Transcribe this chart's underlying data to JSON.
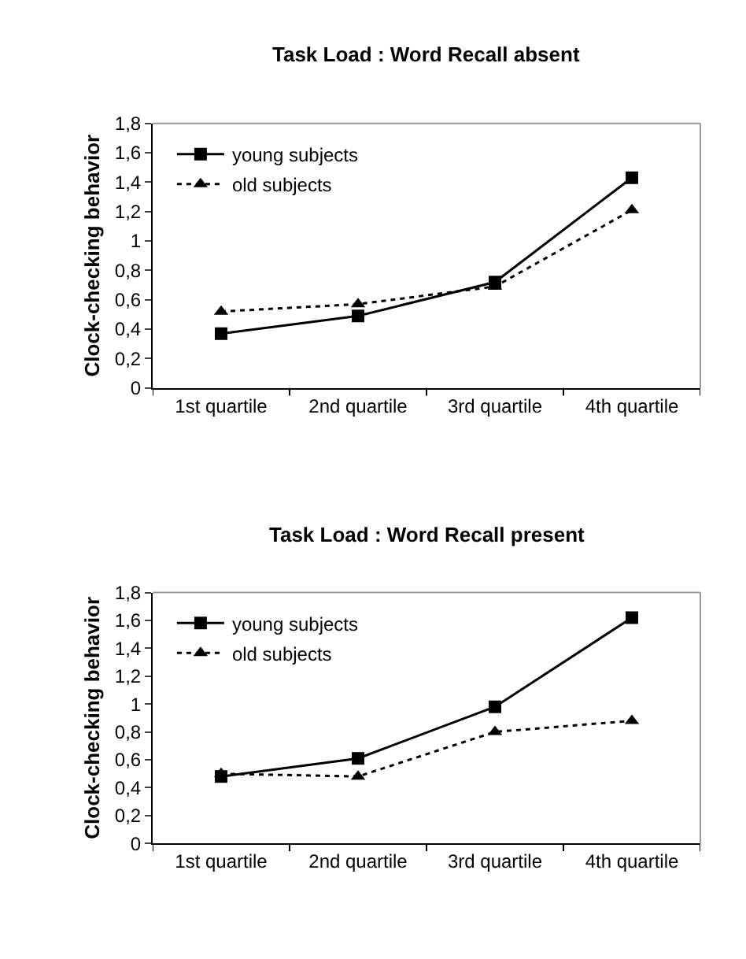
{
  "chart_data": [
    {
      "type": "line",
      "title": "Task Load : Word Recall absent",
      "ylabel": "Clock-checking behavior",
      "categories": [
        "1st quartile",
        "2nd quartile",
        "3rd quartile",
        "4th quartile"
      ],
      "series": [
        {
          "name": "young subjects",
          "color": "#000000",
          "marker": "square",
          "line_style": "solid",
          "values": [
            0.37,
            0.49,
            0.72,
            1.43
          ]
        },
        {
          "name": "old subjects",
          "color": "#000000",
          "marker": "triangle",
          "line_style": "dotted",
          "values": [
            0.52,
            0.57,
            0.69,
            1.21
          ]
        }
      ],
      "ylim": [
        0,
        1.8
      ],
      "yticks": [
        0,
        {
          "value": 0.2,
          "label": "0,2"
        },
        {
          "value": 0.4,
          "label": "0,4"
        },
        {
          "value": 0.6,
          "label": "0,6"
        },
        {
          "value": 0.8,
          "label": "0,8"
        },
        1,
        {
          "value": 1.2,
          "label": "1,2"
        },
        {
          "value": 1.4,
          "label": "1,4"
        },
        {
          "value": 1.6,
          "label": "1,6"
        },
        {
          "value": 1.8,
          "label": "1,8"
        }
      ],
      "legend": "top left"
    },
    {
      "type": "line",
      "title": "Task Load : Word Recall present",
      "ylabel": "Clock-checking behavior",
      "categories": [
        "1st quartile",
        "2nd quartile",
        "3rd quartile",
        "4th quartile"
      ],
      "series": [
        {
          "name": "young subjects",
          "color": "#000000",
          "marker": "square",
          "line_style": "solid",
          "values": [
            0.48,
            0.61,
            0.98,
            1.62
          ]
        },
        {
          "name": "old subjects",
          "color": "#000000",
          "marker": "triangle",
          "line_style": "dotted",
          "values": [
            0.5,
            0.48,
            0.8,
            0.88
          ]
        }
      ],
      "ylim": [
        0,
        1.8
      ],
      "yticks": [
        0,
        {
          "value": 0.2,
          "label": "0,2"
        },
        {
          "value": 0.4,
          "label": "0,4"
        },
        {
          "value": 0.6,
          "label": "0,6"
        },
        {
          "value": 0.8,
          "label": "0,8"
        },
        1,
        {
          "value": 1.2,
          "label": "1,2"
        },
        {
          "value": 1.4,
          "label": "1,4"
        },
        {
          "value": 1.6,
          "label": "1,6"
        },
        {
          "value": 1.8,
          "label": "1,8"
        }
      ],
      "legend": "top left"
    }
  ]
}
